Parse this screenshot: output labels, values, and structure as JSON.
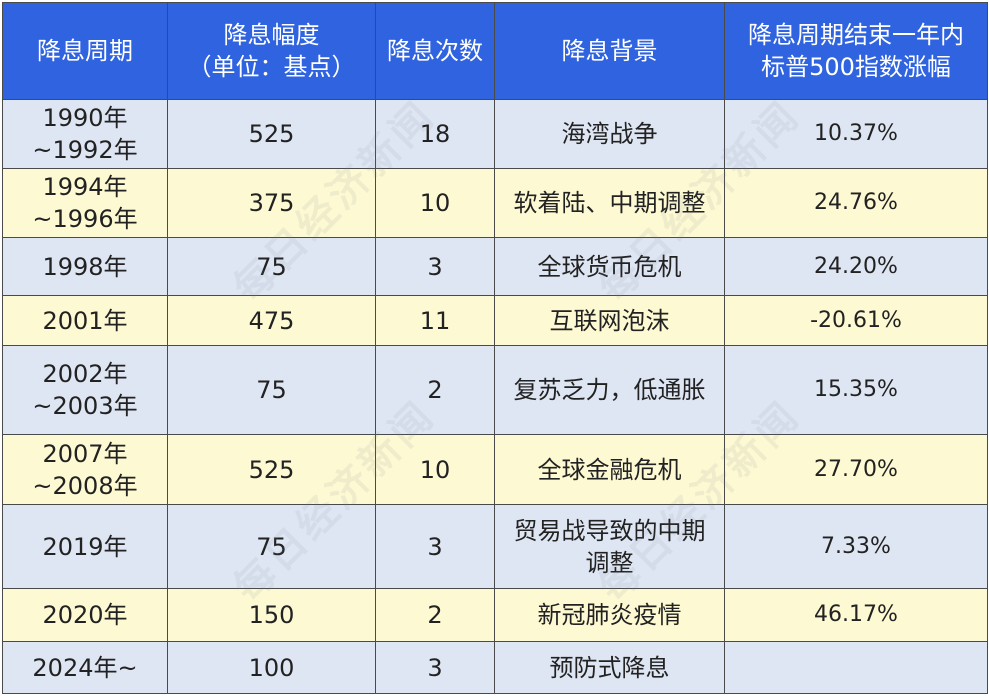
{
  "table": {
    "headers": [
      [
        "降息周期"
      ],
      [
        "降息幅度",
        "（单位：基点）"
      ],
      [
        "降息次数"
      ],
      [
        "降息背景"
      ],
      [
        "降息周期结束一年内",
        "标普500指数涨幅"
      ]
    ],
    "rows": [
      {
        "period": [
          "1990年",
          "~1992年"
        ],
        "bps": "525",
        "count": "18",
        "background": [
          "海湾战争"
        ],
        "sp500": "10.37%"
      },
      {
        "period": [
          "1994年",
          "~1996年"
        ],
        "bps": "375",
        "count": "10",
        "background": [
          "软着陆、中期调整"
        ],
        "sp500": "24.76%"
      },
      {
        "period": [
          "1998年"
        ],
        "bps": "75",
        "count": "3",
        "background": [
          "全球货币危机"
        ],
        "sp500": "24.20%"
      },
      {
        "period": [
          "2001年"
        ],
        "bps": "475",
        "count": "11",
        "background": [
          "互联网泡沫"
        ],
        "sp500": "-20.61%"
      },
      {
        "period": [
          "2002年",
          "~2003年"
        ],
        "bps": "75",
        "count": "2",
        "background": [
          "复苏乏力，低通胀"
        ],
        "sp500": "15.35%"
      },
      {
        "period": [
          "2007年",
          "~2008年"
        ],
        "bps": "525",
        "count": "10",
        "background": [
          "全球金融危机"
        ],
        "sp500": "27.70%"
      },
      {
        "period": [
          "2019年"
        ],
        "bps": "75",
        "count": "3",
        "background": [
          "贸易战导致的中期",
          "调整"
        ],
        "sp500": "7.33%"
      },
      {
        "period": [
          "2020年"
        ],
        "bps": "150",
        "count": "2",
        "background": [
          "新冠肺炎疫情"
        ],
        "sp500": "46.17%"
      },
      {
        "period": [
          "2024年~"
        ],
        "bps": "100",
        "count": "3",
        "background": [
          "预防式降息"
        ],
        "sp500": ""
      }
    ]
  },
  "watermark": "每日经济新闻",
  "colors": {
    "header_bg": "#2f63e0",
    "row_blue": "#dfe6f3",
    "row_yellow": "#fdf9d3",
    "border": "#4a4a4a"
  }
}
